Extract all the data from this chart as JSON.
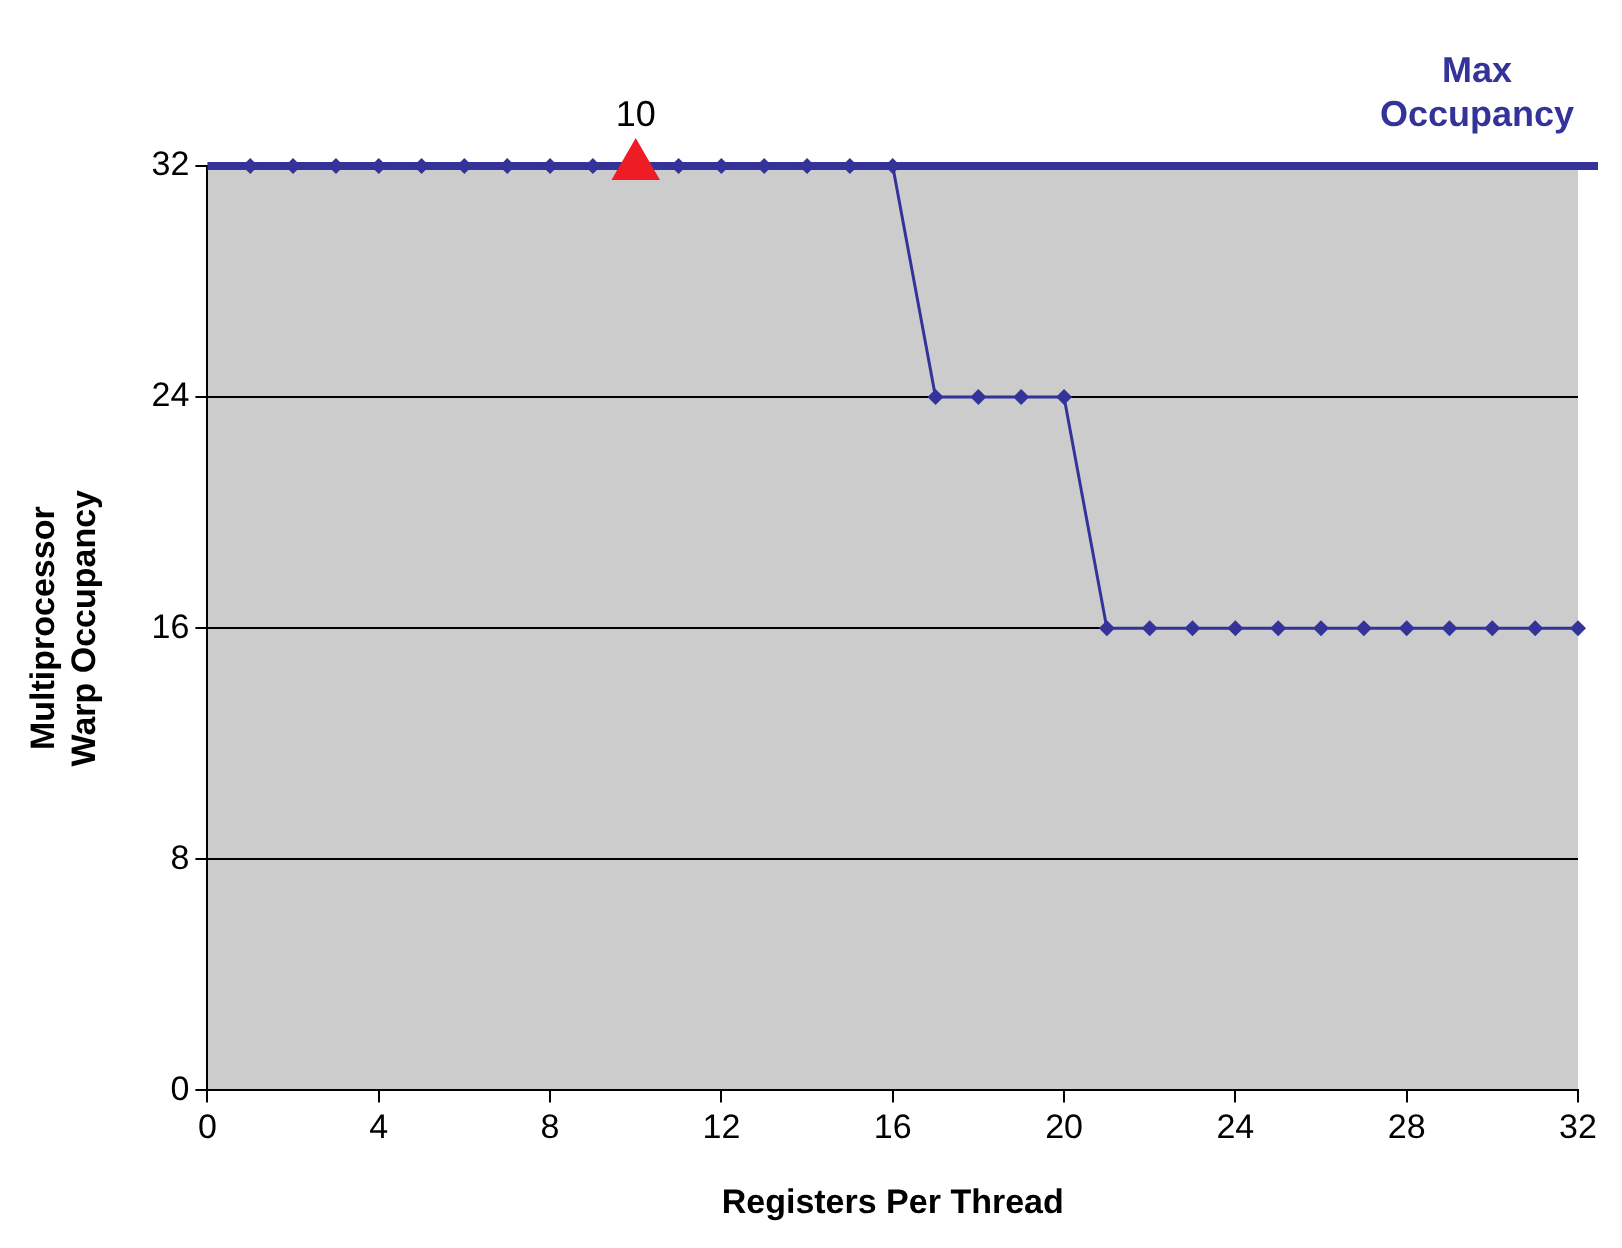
{
  "chart_data": {
    "type": "line",
    "xlabel": "Registers Per Thread",
    "ylabel": "Multiprocessor\nWarp Occupancy",
    "xlim": [
      0,
      32
    ],
    "xticks": [
      0,
      4,
      8,
      12,
      16,
      20,
      24,
      28,
      32
    ],
    "ylim": [
      0,
      32
    ],
    "yticks": [
      0,
      8,
      16,
      24,
      32
    ],
    "grid": "y",
    "legend": false,
    "series": [
      {
        "color": "#333399",
        "marker": "diamond",
        "x": [
          1,
          2,
          3,
          4,
          5,
          6,
          7,
          8,
          9,
          10,
          11,
          12,
          13,
          14,
          15,
          16,
          17,
          18,
          19,
          20,
          21,
          22,
          23,
          24,
          25,
          26,
          27,
          28,
          29,
          30,
          31,
          32
        ],
        "values": [
          32,
          32,
          32,
          32,
          32,
          32,
          32,
          32,
          32,
          null,
          32,
          32,
          32,
          32,
          32,
          32,
          24,
          24,
          24,
          24,
          16,
          16,
          16,
          16,
          16,
          16,
          16,
          16,
          16,
          16,
          16,
          16
        ]
      },
      {
        "type": "scatter",
        "color": "#ee1c25",
        "marker": "triangle",
        "x": [
          10
        ],
        "values": [
          32
        ]
      }
    ],
    "ref_lines": [
      {
        "axis": "y",
        "value": 32,
        "label": "Max\nOccupancy",
        "color": "#333399"
      }
    ],
    "annotations": [
      {
        "text": "10",
        "x": 10,
        "y": 32
      }
    ]
  }
}
